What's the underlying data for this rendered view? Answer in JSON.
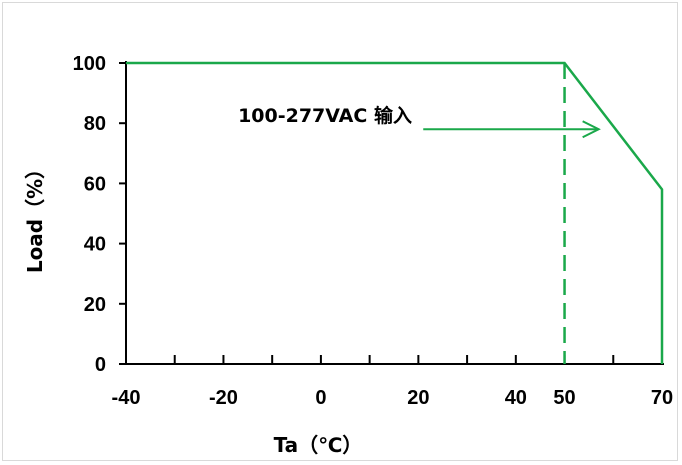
{
  "chart_data": {
    "type": "line",
    "xlabel": "Ta（℃）",
    "ylabel": "Load（%）",
    "xlim": [
      -40,
      70
    ],
    "ylim": [
      0,
      100
    ],
    "x_ticks": [
      -40,
      -20,
      0,
      20,
      40,
      50,
      70
    ],
    "x_minor_ticks": [
      -30,
      -10,
      10,
      30,
      60
    ],
    "y_ticks": [
      0,
      20,
      40,
      60,
      80,
      100
    ],
    "grid": false,
    "line_color": "#1aa84a",
    "series": [
      {
        "x": [
          -40,
          50,
          70,
          70
        ],
        "y": [
          100,
          100,
          58,
          0
        ]
      }
    ],
    "reference_lines": [
      {
        "orientation": "vertical",
        "x": 50,
        "style": "dashed"
      }
    ],
    "annotations": [
      {
        "text": "100-277VAC 输入",
        "arrow": {
          "from": [
            21,
            78
          ],
          "to": [
            57,
            78
          ]
        }
      }
    ]
  }
}
